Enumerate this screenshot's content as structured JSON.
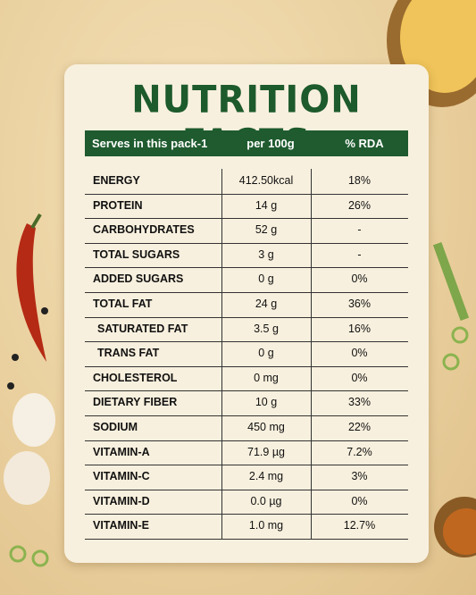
{
  "header": {
    "title": "NUTRITION FACTS"
  },
  "table": {
    "columns": [
      "Serves in this pack-1",
      "per 100g",
      "% RDA"
    ],
    "rows": [
      [
        "ENERGY",
        "412.50kcal",
        "18%"
      ],
      [
        "PROTEIN",
        "14 g",
        "26%"
      ],
      [
        "CARBOHYDRATES",
        "52 g",
        "-"
      ],
      [
        "TOTAL SUGARS",
        "3 g",
        "-"
      ],
      [
        "ADDED SUGARS",
        "0 g",
        "0%"
      ],
      [
        "TOTAL FAT",
        "24 g",
        "36%"
      ],
      [
        "SATURATED FAT",
        "3.5 g",
        "16%"
      ],
      [
        "TRANS FAT",
        "0 g",
        "0%"
      ],
      [
        "CHOLESTEROL",
        "0 mg",
        "0%"
      ],
      [
        "DIETARY FIBER",
        "10 g",
        "33%"
      ],
      [
        "SODIUM",
        "450 mg",
        "22%"
      ],
      [
        "VITAMIN-A",
        "71.9 µg",
        "7.2%"
      ],
      [
        "VITAMIN-C",
        "2.4 mg",
        "3%"
      ],
      [
        "VITAMIN-D",
        "0.0 µg",
        "0%"
      ],
      [
        "VITAMIN-E",
        "1.0 mg",
        "12.7%"
      ]
    ]
  }
}
